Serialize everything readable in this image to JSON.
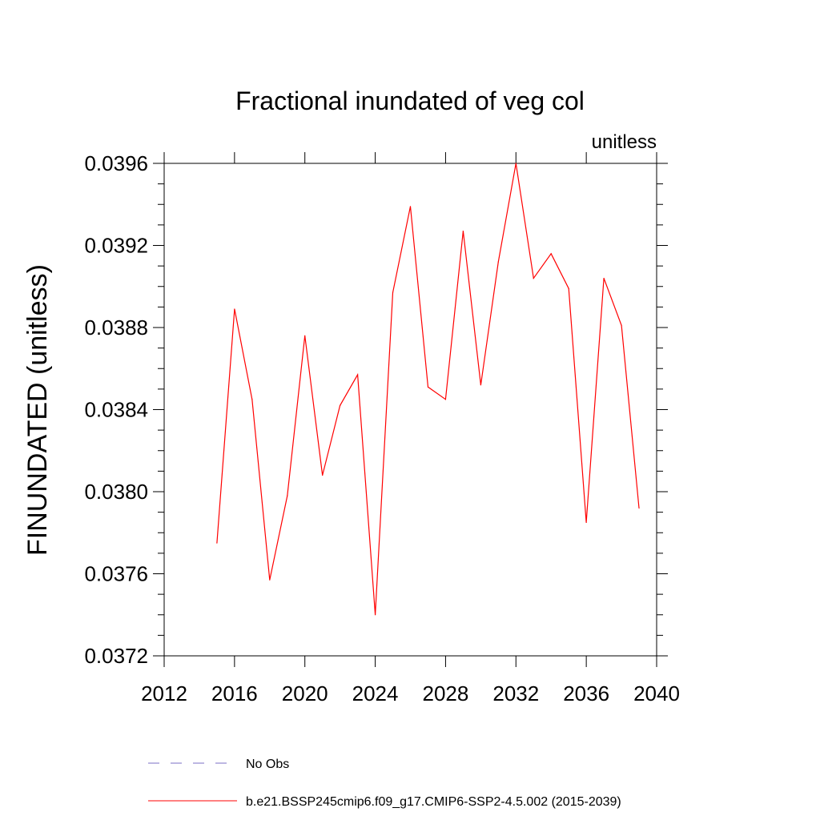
{
  "chart_data": {
    "type": "line",
    "title": "Fractional inundated of veg col",
    "units_label": "unitless",
    "ylabel": "FINUNDATED  (unitless)",
    "xlabel": "",
    "xlim": [
      2012,
      2040
    ],
    "ylim": [
      0.0372,
      0.0396
    ],
    "x_ticks": [
      2012,
      2016,
      2020,
      2024,
      2028,
      2032,
      2036,
      2040
    ],
    "x_tick_labels": [
      "2012",
      "2016",
      "2020",
      "2024",
      "2028",
      "2032",
      "2036",
      "2040"
    ],
    "y_ticks": [
      0.0372,
      0.0376,
      0.038,
      0.0384,
      0.0388,
      0.0392,
      0.0396
    ],
    "y_tick_labels": [
      "0.0372",
      "0.0376",
      "0.0380",
      "0.0384",
      "0.0388",
      "0.0392",
      "0.0396"
    ],
    "grid": false,
    "legend_placement": "bottom",
    "series": [
      {
        "name": "b.e21.BSSP245cmip6.f09_g17.CMIP6-SSP2-4.5.002 (2015-2039)",
        "color": "#ff0000",
        "dash": "solid",
        "x": [
          2015,
          2016,
          2017,
          2018,
          2019,
          2020,
          2021,
          2022,
          2023,
          2024,
          2025,
          2026,
          2027,
          2028,
          2029,
          2030,
          2031,
          2032,
          2033,
          2034,
          2035,
          2036,
          2037,
          2038,
          2039
        ],
        "y": [
          0.03775,
          0.03889,
          0.03845,
          0.03757,
          0.03798,
          0.03876,
          0.03808,
          0.03842,
          0.03857,
          0.0374,
          0.03897,
          0.03939,
          0.03851,
          0.03845,
          0.03927,
          0.03852,
          0.03912,
          0.0396,
          0.03904,
          0.03916,
          0.03899,
          0.03785,
          0.03904,
          0.03881,
          0.03792
        ]
      }
    ],
    "legend": [
      {
        "label": "No Obs",
        "color": "#7b6fc4",
        "dash": "dashed"
      },
      {
        "label": "b.e21.BSSP245cmip6.f09_g17.CMIP6-SSP2-4.5.002 (2015-2039)",
        "color": "#ff0000",
        "dash": "solid"
      }
    ]
  }
}
